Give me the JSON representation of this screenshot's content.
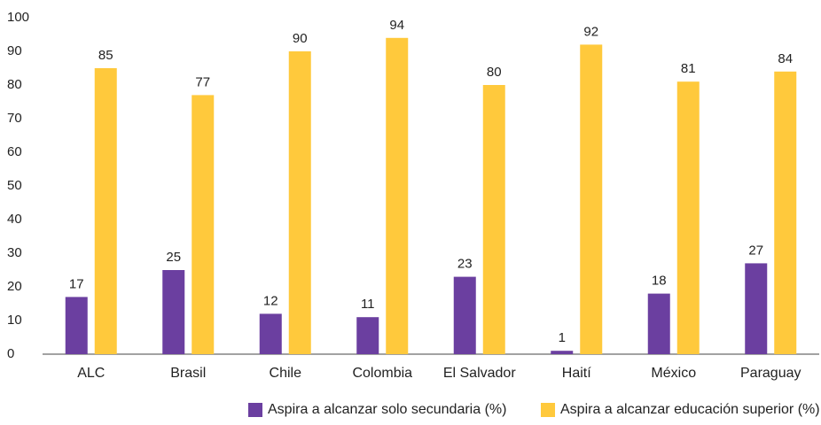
{
  "chart_data": {
    "type": "bar",
    "categories": [
      "ALC",
      "Brasil",
      "Chile",
      "Colombia",
      "El Salvador",
      "Haití",
      "México",
      "Paraguay"
    ],
    "series": [
      {
        "name": "Aspira a alcanzar solo secundaria (%)",
        "color": "#6b3fa0",
        "values": [
          17,
          25,
          12,
          11,
          23,
          1,
          18,
          27
        ]
      },
      {
        "name": "Aspira a alcanzar educación superior (%)",
        "color": "#ffc93c",
        "values": [
          85,
          77,
          90,
          94,
          80,
          92,
          81,
          84
        ]
      }
    ],
    "ylim": [
      0,
      100
    ],
    "yticks": [
      0,
      10,
      20,
      30,
      40,
      50,
      60,
      70,
      80,
      90,
      100
    ],
    "grid": false,
    "legend": "bottom"
  }
}
